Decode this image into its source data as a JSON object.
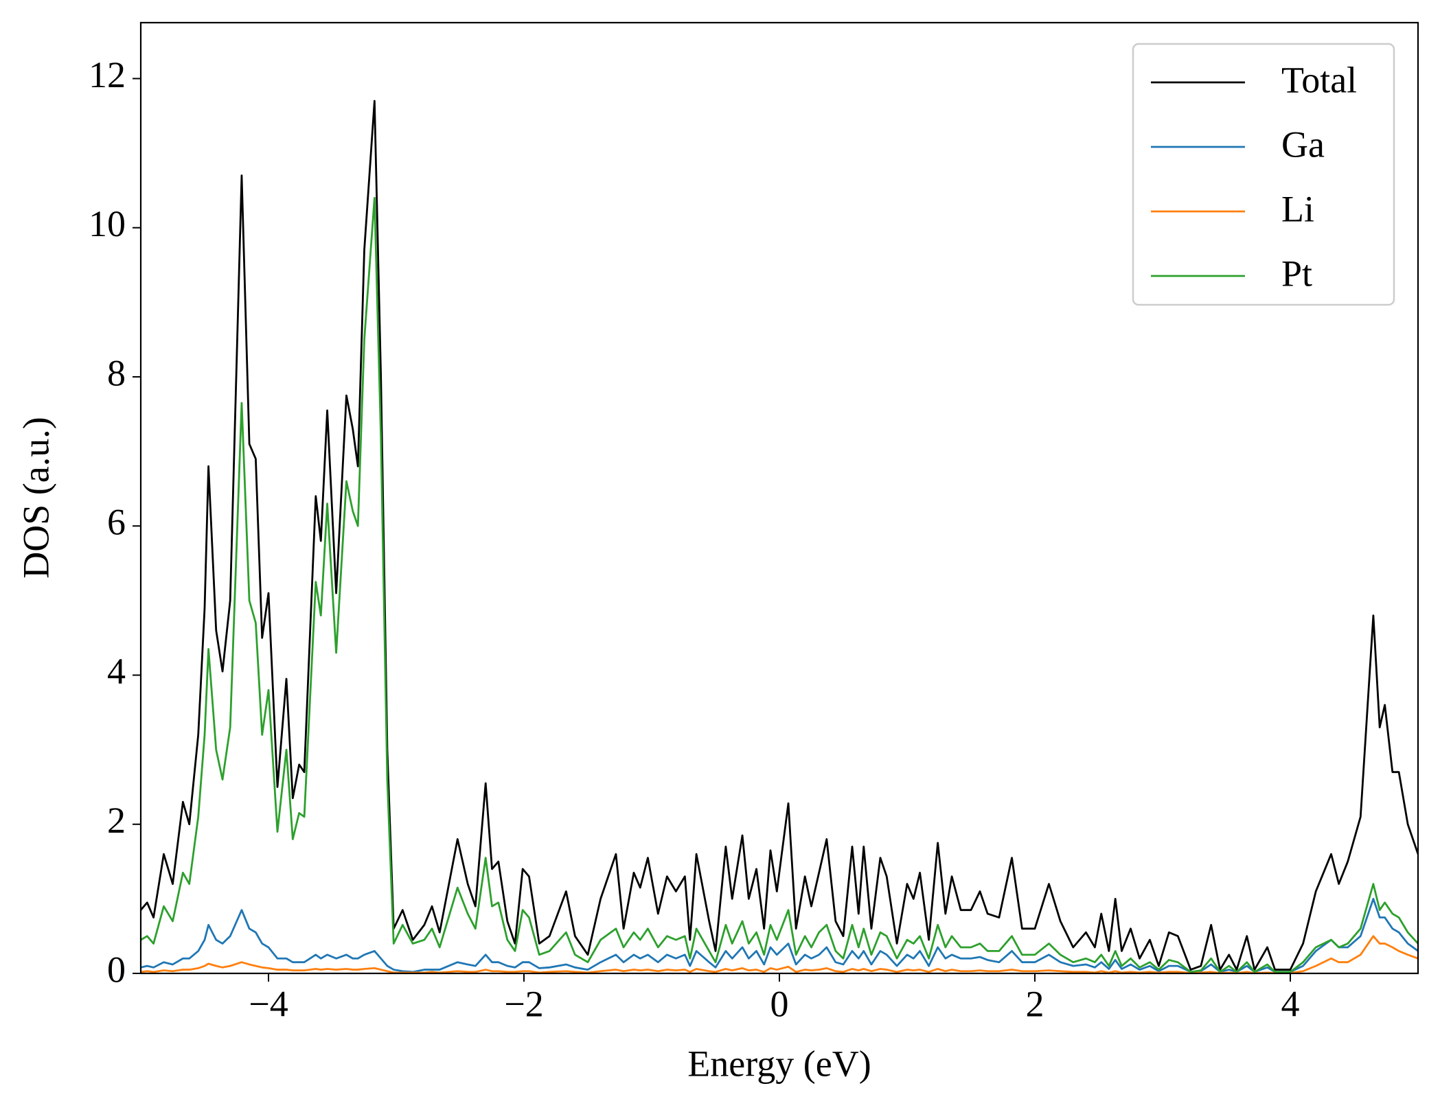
{
  "chart_data": {
    "type": "line",
    "xlabel": "Energy (eV)",
    "ylabel": "DOS (a.u.)",
    "x": [
      -5,
      -4.95,
      -4.9,
      -4.82,
      -4.75,
      -4.67,
      -4.62,
      -4.55,
      -4.5,
      -4.47,
      -4.41,
      -4.36,
      -4.3,
      -4.21,
      -4.15,
      -4.1,
      -4.05,
      -4,
      -3.93,
      -3.86,
      -3.81,
      -3.76,
      -3.72,
      -3.63,
      -3.59,
      -3.54,
      -3.47,
      -3.39,
      -3.34,
      -3.3,
      -3.25,
      -3.17,
      -3.12,
      -3.07,
      -3.02,
      -2.95,
      -2.87,
      -2.78,
      -2.72,
      -2.66,
      -2.52,
      -2.44,
      -2.38,
      -2.3,
      -2.25,
      -2.2,
      -2.13,
      -2.07,
      -2.01,
      -1.96,
      -1.88,
      -1.8,
      -1.67,
      -1.6,
      -1.5,
      -1.4,
      -1.28,
      -1.22,
      -1.14,
      -1.09,
      -1.03,
      -0.95,
      -0.88,
      -0.81,
      -0.74,
      -0.7,
      -0.65,
      -0.55,
      -0.5,
      -0.42,
      -0.37,
      -0.29,
      -0.24,
      -0.18,
      -0.12,
      -0.07,
      -0.02,
      0.07,
      0.13,
      0.2,
      0.25,
      0.31,
      0.37,
      0.44,
      0.5,
      0.57,
      0.62,
      0.66,
      0.72,
      0.79,
      0.84,
      0.92,
      1,
      1.05,
      1.1,
      1.17,
      1.24,
      1.3,
      1.35,
      1.42,
      1.5,
      1.57,
      1.63,
      1.72,
      1.82,
      1.9,
      2,
      2.11,
      2.2,
      2.3,
      2.4,
      2.47,
      2.52,
      2.58,
      2.63,
      2.68,
      2.75,
      2.82,
      2.9,
      2.97,
      3.05,
      3.12,
      3.22,
      3.3,
      3.38,
      3.45,
      3.52,
      3.58,
      3.66,
      3.72,
      3.82,
      3.88,
      4,
      4.1,
      4.2,
      4.32,
      4.38,
      4.45,
      4.55,
      4.65,
      4.7,
      4.74,
      4.8,
      4.85,
      4.92,
      5
    ],
    "series": [
      {
        "name": "Total",
        "color": "#000000",
        "values": [
          0.85,
          0.95,
          0.75,
          1.6,
          1.2,
          2.3,
          2.0,
          3.2,
          4.9,
          6.8,
          4.6,
          4.05,
          5.0,
          10.7,
          7.1,
          6.9,
          4.5,
          5.1,
          2.5,
          3.95,
          2.35,
          2.8,
          2.7,
          6.4,
          5.8,
          7.55,
          5.1,
          7.75,
          7.3,
          6.8,
          9.7,
          11.7,
          8.0,
          3.0,
          0.6,
          0.85,
          0.45,
          0.65,
          0.9,
          0.55,
          1.8,
          1.2,
          0.9,
          2.55,
          1.4,
          1.5,
          0.7,
          0.4,
          1.4,
          1.3,
          0.4,
          0.5,
          1.1,
          0.5,
          0.25,
          1.0,
          1.6,
          0.6,
          1.35,
          1.15,
          1.55,
          0.8,
          1.3,
          1.1,
          1.3,
          0.45,
          1.6,
          0.7,
          0.3,
          1.7,
          1.0,
          1.85,
          1.0,
          1.4,
          0.6,
          1.65,
          1.1,
          2.28,
          0.6,
          1.3,
          0.9,
          1.35,
          1.8,
          0.7,
          0.5,
          1.7,
          0.8,
          1.7,
          0.6,
          1.55,
          1.3,
          0.4,
          1.2,
          1.0,
          1.35,
          0.45,
          1.75,
          0.8,
          1.3,
          0.85,
          0.85,
          1.1,
          0.8,
          0.75,
          1.55,
          0.6,
          0.6,
          1.2,
          0.7,
          0.35,
          0.55,
          0.35,
          0.8,
          0.3,
          1.0,
          0.3,
          0.6,
          0.2,
          0.45,
          0.1,
          0.55,
          0.5,
          0.05,
          0.1,
          0.65,
          0.05,
          0.25,
          0.05,
          0.5,
          0.05,
          0.35,
          0.05,
          0.05,
          0.4,
          1.1,
          1.6,
          1.2,
          1.5,
          2.1,
          4.8,
          3.3,
          3.6,
          2.7,
          2.7,
          2.0,
          1.6
        ]
      },
      {
        "name": "Ga",
        "color": "#1f77b4",
        "values": [
          0.08,
          0.1,
          0.08,
          0.15,
          0.12,
          0.2,
          0.2,
          0.3,
          0.45,
          0.65,
          0.45,
          0.4,
          0.5,
          0.85,
          0.6,
          0.55,
          0.4,
          0.35,
          0.2,
          0.2,
          0.15,
          0.15,
          0.15,
          0.25,
          0.2,
          0.25,
          0.2,
          0.25,
          0.2,
          0.2,
          0.25,
          0.3,
          0.2,
          0.1,
          0.05,
          0.03,
          0.02,
          0.05,
          0.05,
          0.05,
          0.15,
          0.12,
          0.1,
          0.25,
          0.15,
          0.15,
          0.1,
          0.08,
          0.15,
          0.15,
          0.07,
          0.08,
          0.12,
          0.08,
          0.05,
          0.15,
          0.25,
          0.15,
          0.25,
          0.2,
          0.25,
          0.15,
          0.25,
          0.2,
          0.25,
          0.1,
          0.3,
          0.15,
          0.08,
          0.3,
          0.2,
          0.35,
          0.2,
          0.3,
          0.12,
          0.35,
          0.25,
          0.4,
          0.12,
          0.25,
          0.2,
          0.25,
          0.35,
          0.15,
          0.12,
          0.3,
          0.2,
          0.3,
          0.12,
          0.3,
          0.25,
          0.1,
          0.25,
          0.2,
          0.3,
          0.1,
          0.35,
          0.2,
          0.25,
          0.2,
          0.2,
          0.22,
          0.18,
          0.15,
          0.3,
          0.15,
          0.15,
          0.25,
          0.15,
          0.1,
          0.12,
          0.08,
          0.15,
          0.06,
          0.18,
          0.06,
          0.12,
          0.05,
          0.1,
          0.03,
          0.1,
          0.1,
          0.02,
          0.03,
          0.12,
          0.02,
          0.05,
          0.02,
          0.1,
          0.02,
          0.08,
          0.02,
          0.02,
          0.1,
          0.3,
          0.45,
          0.35,
          0.35,
          0.5,
          1.0,
          0.75,
          0.75,
          0.6,
          0.55,
          0.4,
          0.3
        ]
      },
      {
        "name": "Li",
        "color": "#ff7f0e",
        "values": [
          0.02,
          0.03,
          0.02,
          0.04,
          0.03,
          0.05,
          0.05,
          0.07,
          0.1,
          0.13,
          0.1,
          0.08,
          0.1,
          0.15,
          0.12,
          0.1,
          0.08,
          0.07,
          0.05,
          0.05,
          0.04,
          0.04,
          0.04,
          0.06,
          0.05,
          0.06,
          0.05,
          0.06,
          0.05,
          0.05,
          0.06,
          0.07,
          0.05,
          0.03,
          0.01,
          0.01,
          0.01,
          0.01,
          0.02,
          0.01,
          0.03,
          0.02,
          0.02,
          0.05,
          0.03,
          0.03,
          0.02,
          0.02,
          0.03,
          0.03,
          0.01,
          0.02,
          0.03,
          0.02,
          0.01,
          0.03,
          0.05,
          0.03,
          0.05,
          0.04,
          0.05,
          0.03,
          0.05,
          0.04,
          0.05,
          0.02,
          0.06,
          0.03,
          0.02,
          0.06,
          0.04,
          0.07,
          0.04,
          0.05,
          0.02,
          0.07,
          0.05,
          0.09,
          0.02,
          0.05,
          0.04,
          0.05,
          0.07,
          0.03,
          0.02,
          0.06,
          0.04,
          0.06,
          0.03,
          0.06,
          0.05,
          0.02,
          0.05,
          0.04,
          0.05,
          0.02,
          0.06,
          0.03,
          0.05,
          0.03,
          0.03,
          0.04,
          0.03,
          0.03,
          0.05,
          0.03,
          0.03,
          0.04,
          0.03,
          0.02,
          0.02,
          0.01,
          0.03,
          0.01,
          0.03,
          0.01,
          0.02,
          0.01,
          0.02,
          0.01,
          0.02,
          0.02,
          0.005,
          0.01,
          0.02,
          0.005,
          0.01,
          0.005,
          0.02,
          0.005,
          0.01,
          0.005,
          0.005,
          0.03,
          0.1,
          0.2,
          0.15,
          0.15,
          0.25,
          0.5,
          0.4,
          0.4,
          0.35,
          0.3,
          0.25,
          0.2
        ]
      },
      {
        "name": "Pt",
        "color": "#2ca02c",
        "values": [
          0.45,
          0.5,
          0.4,
          0.9,
          0.7,
          1.35,
          1.2,
          2.1,
          3.2,
          4.35,
          3.0,
          2.6,
          3.3,
          7.65,
          5.0,
          4.7,
          3.2,
          3.8,
          1.9,
          3.0,
          1.8,
          2.15,
          2.1,
          5.25,
          4.8,
          6.3,
          4.3,
          6.6,
          6.2,
          6.0,
          8.5,
          10.4,
          7.2,
          2.6,
          0.4,
          0.65,
          0.4,
          0.45,
          0.6,
          0.35,
          1.15,
          0.8,
          0.6,
          1.55,
          0.9,
          0.95,
          0.45,
          0.3,
          0.85,
          0.75,
          0.25,
          0.3,
          0.55,
          0.25,
          0.15,
          0.45,
          0.6,
          0.35,
          0.55,
          0.45,
          0.6,
          0.35,
          0.5,
          0.45,
          0.5,
          0.2,
          0.6,
          0.3,
          0.15,
          0.65,
          0.4,
          0.7,
          0.4,
          0.55,
          0.25,
          0.65,
          0.45,
          0.85,
          0.25,
          0.5,
          0.35,
          0.55,
          0.65,
          0.3,
          0.2,
          0.65,
          0.35,
          0.6,
          0.25,
          0.55,
          0.5,
          0.2,
          0.45,
          0.4,
          0.5,
          0.2,
          0.65,
          0.35,
          0.5,
          0.35,
          0.35,
          0.4,
          0.3,
          0.3,
          0.5,
          0.25,
          0.25,
          0.4,
          0.25,
          0.15,
          0.2,
          0.15,
          0.25,
          0.1,
          0.3,
          0.1,
          0.2,
          0.08,
          0.15,
          0.05,
          0.18,
          0.15,
          0.02,
          0.04,
          0.2,
          0.02,
          0.1,
          0.02,
          0.15,
          0.02,
          0.12,
          0.02,
          0.02,
          0.15,
          0.35,
          0.45,
          0.35,
          0.4,
          0.6,
          1.2,
          0.85,
          0.95,
          0.8,
          0.75,
          0.55,
          0.4
        ]
      }
    ],
    "xlim": [
      -5,
      5
    ],
    "xticks": [
      {
        "value": -4,
        "label": "−4"
      },
      {
        "value": -2,
        "label": "−2"
      },
      0,
      2,
      4
    ],
    "ylim": [
      0,
      12.75
    ],
    "yticks": [
      0,
      2,
      4,
      6,
      8,
      10,
      12
    ],
    "legend": "upper right"
  }
}
